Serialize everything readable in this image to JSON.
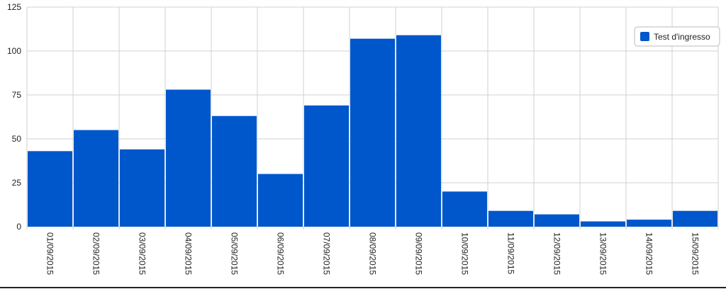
{
  "chart_data": {
    "type": "bar",
    "categories": [
      "01/09/2015",
      "02/09/2015",
      "03/09/2015",
      "04/09/2015",
      "05/09/2015",
      "06/09/2015",
      "07/09/2015",
      "08/09/2015",
      "09/09/2015",
      "10/09/2015",
      "11/09/2015",
      "12/09/2015",
      "13/09/2015",
      "14/09/2015",
      "15/09/2015"
    ],
    "series": [
      {
        "name": "Test d'ingresso",
        "color": "#0057cc",
        "values": [
          43,
          55,
          44,
          78,
          63,
          30,
          69,
          107,
          109,
          20,
          9,
          7,
          3,
          4,
          9
        ]
      }
    ],
    "ylim": [
      0,
      125
    ],
    "yticks": [
      0,
      25,
      50,
      75,
      100,
      125
    ],
    "grid": true,
    "legend": "top-right"
  }
}
